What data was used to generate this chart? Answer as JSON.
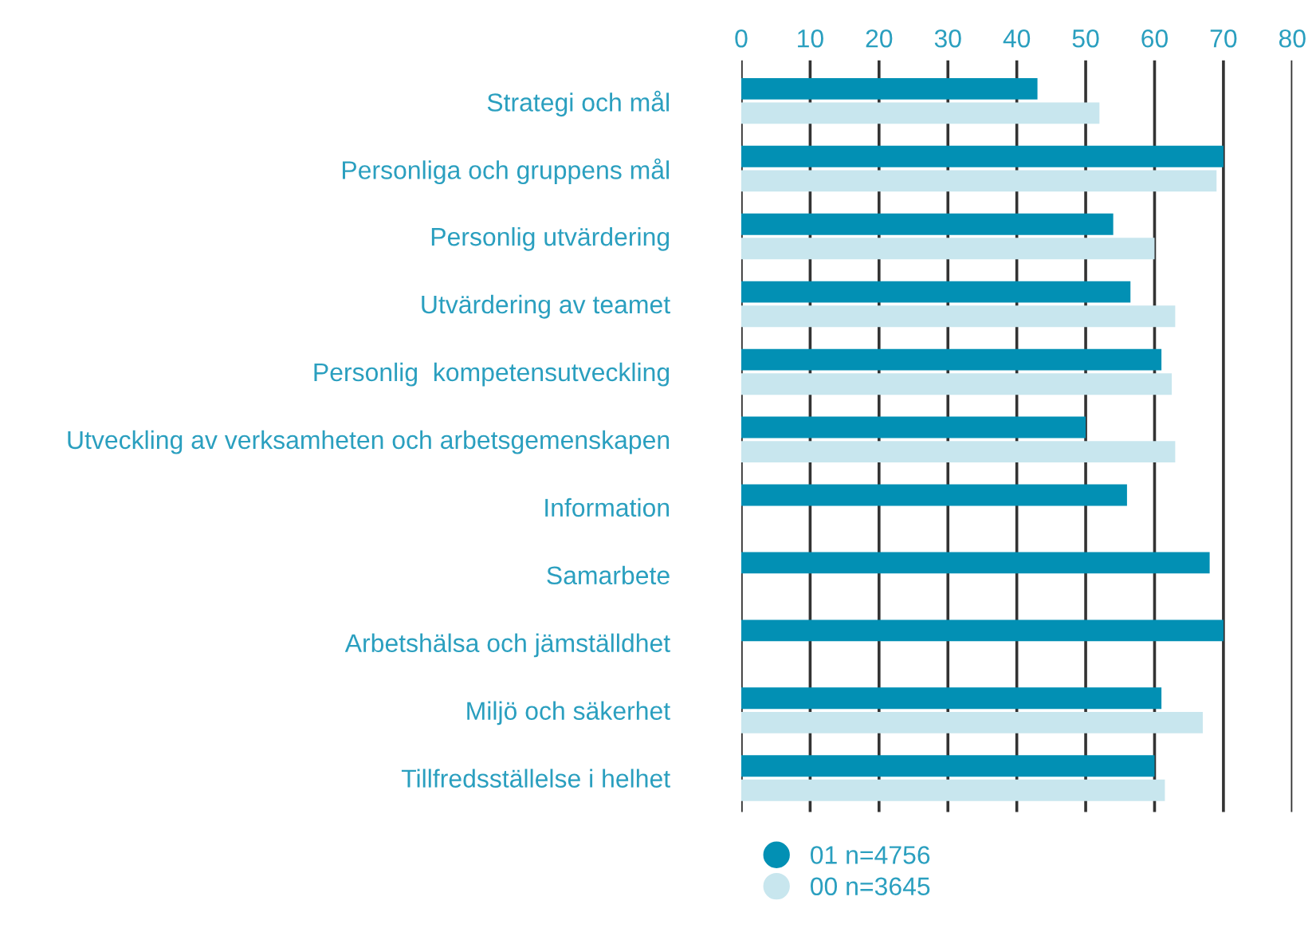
{
  "chart_data": {
    "type": "bar",
    "orientation": "horizontal",
    "categories": [
      "Strategi och mål",
      "Personliga och gruppens mål",
      "Personlig utvärdering",
      "Utvärdering av teamet",
      "Personlig  kompetensutveckling",
      "Utveckling av verksamheten och arbetsgemenskapen",
      "Information",
      "Samarbete",
      "Arbetshälsa och jämställdhet",
      "Miljö och säkerhet",
      "Tillfredsställelse i helhet"
    ],
    "series": [
      {
        "name": "01 n=4756",
        "color": "#0290b4",
        "values": [
          43,
          70,
          54,
          56.5,
          61,
          50,
          56,
          68,
          70,
          61,
          60
        ]
      },
      {
        "name": "00 n=3645",
        "color": "#c8e6ee",
        "values": [
          52,
          69,
          60,
          63,
          62.5,
          63,
          null,
          null,
          null,
          67,
          61.5
        ]
      }
    ],
    "xlim": [
      0,
      80
    ],
    "xticks": [
      0,
      10,
      20,
      30,
      40,
      50,
      60,
      70,
      80
    ],
    "grid": "x",
    "legend": "bottom left"
  }
}
